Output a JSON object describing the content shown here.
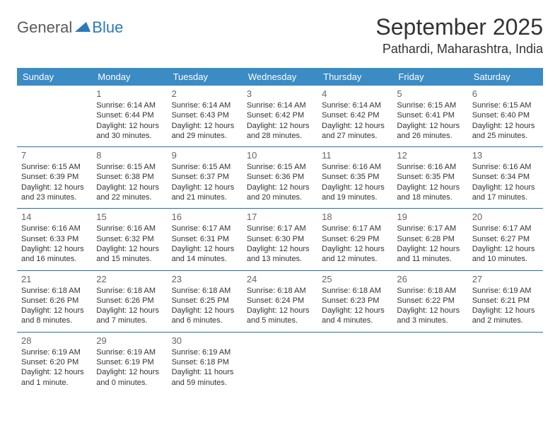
{
  "logo": {
    "part1": "General",
    "part2": "Blue"
  },
  "title": "September 2025",
  "location": "Pathardi, Maharashtra, India",
  "colors": {
    "header_bg": "#3b8bc4",
    "header_text": "#ffffff",
    "divider": "#2a6ea8",
    "logo_gray": "#5a5a5a",
    "logo_blue": "#2a7ab8",
    "text": "#333333",
    "daynum": "#666666",
    "background": "#ffffff"
  },
  "day_names": [
    "Sunday",
    "Monday",
    "Tuesday",
    "Wednesday",
    "Thursday",
    "Friday",
    "Saturday"
  ],
  "weeks": [
    [
      null,
      {
        "n": "1",
        "sr": "6:14 AM",
        "ss": "6:44 PM",
        "dl": "12 hours and 30 minutes."
      },
      {
        "n": "2",
        "sr": "6:14 AM",
        "ss": "6:43 PM",
        "dl": "12 hours and 29 minutes."
      },
      {
        "n": "3",
        "sr": "6:14 AM",
        "ss": "6:42 PM",
        "dl": "12 hours and 28 minutes."
      },
      {
        "n": "4",
        "sr": "6:14 AM",
        "ss": "6:42 PM",
        "dl": "12 hours and 27 minutes."
      },
      {
        "n": "5",
        "sr": "6:15 AM",
        "ss": "6:41 PM",
        "dl": "12 hours and 26 minutes."
      },
      {
        "n": "6",
        "sr": "6:15 AM",
        "ss": "6:40 PM",
        "dl": "12 hours and 25 minutes."
      }
    ],
    [
      {
        "n": "7",
        "sr": "6:15 AM",
        "ss": "6:39 PM",
        "dl": "12 hours and 23 minutes."
      },
      {
        "n": "8",
        "sr": "6:15 AM",
        "ss": "6:38 PM",
        "dl": "12 hours and 22 minutes."
      },
      {
        "n": "9",
        "sr": "6:15 AM",
        "ss": "6:37 PM",
        "dl": "12 hours and 21 minutes."
      },
      {
        "n": "10",
        "sr": "6:15 AM",
        "ss": "6:36 PM",
        "dl": "12 hours and 20 minutes."
      },
      {
        "n": "11",
        "sr": "6:16 AM",
        "ss": "6:35 PM",
        "dl": "12 hours and 19 minutes."
      },
      {
        "n": "12",
        "sr": "6:16 AM",
        "ss": "6:35 PM",
        "dl": "12 hours and 18 minutes."
      },
      {
        "n": "13",
        "sr": "6:16 AM",
        "ss": "6:34 PM",
        "dl": "12 hours and 17 minutes."
      }
    ],
    [
      {
        "n": "14",
        "sr": "6:16 AM",
        "ss": "6:33 PM",
        "dl": "12 hours and 16 minutes."
      },
      {
        "n": "15",
        "sr": "6:16 AM",
        "ss": "6:32 PM",
        "dl": "12 hours and 15 minutes."
      },
      {
        "n": "16",
        "sr": "6:17 AM",
        "ss": "6:31 PM",
        "dl": "12 hours and 14 minutes."
      },
      {
        "n": "17",
        "sr": "6:17 AM",
        "ss": "6:30 PM",
        "dl": "12 hours and 13 minutes."
      },
      {
        "n": "18",
        "sr": "6:17 AM",
        "ss": "6:29 PM",
        "dl": "12 hours and 12 minutes."
      },
      {
        "n": "19",
        "sr": "6:17 AM",
        "ss": "6:28 PM",
        "dl": "12 hours and 11 minutes."
      },
      {
        "n": "20",
        "sr": "6:17 AM",
        "ss": "6:27 PM",
        "dl": "12 hours and 10 minutes."
      }
    ],
    [
      {
        "n": "21",
        "sr": "6:18 AM",
        "ss": "6:26 PM",
        "dl": "12 hours and 8 minutes."
      },
      {
        "n": "22",
        "sr": "6:18 AM",
        "ss": "6:26 PM",
        "dl": "12 hours and 7 minutes."
      },
      {
        "n": "23",
        "sr": "6:18 AM",
        "ss": "6:25 PM",
        "dl": "12 hours and 6 minutes."
      },
      {
        "n": "24",
        "sr": "6:18 AM",
        "ss": "6:24 PM",
        "dl": "12 hours and 5 minutes."
      },
      {
        "n": "25",
        "sr": "6:18 AM",
        "ss": "6:23 PM",
        "dl": "12 hours and 4 minutes."
      },
      {
        "n": "26",
        "sr": "6:18 AM",
        "ss": "6:22 PM",
        "dl": "12 hours and 3 minutes."
      },
      {
        "n": "27",
        "sr": "6:19 AM",
        "ss": "6:21 PM",
        "dl": "12 hours and 2 minutes."
      }
    ],
    [
      {
        "n": "28",
        "sr": "6:19 AM",
        "ss": "6:20 PM",
        "dl": "12 hours and 1 minute."
      },
      {
        "n": "29",
        "sr": "6:19 AM",
        "ss": "6:19 PM",
        "dl": "12 hours and 0 minutes."
      },
      {
        "n": "30",
        "sr": "6:19 AM",
        "ss": "6:18 PM",
        "dl": "11 hours and 59 minutes."
      },
      null,
      null,
      null,
      null
    ]
  ],
  "labels": {
    "sunrise": "Sunrise:",
    "sunset": "Sunset:",
    "daylight": "Daylight:"
  }
}
